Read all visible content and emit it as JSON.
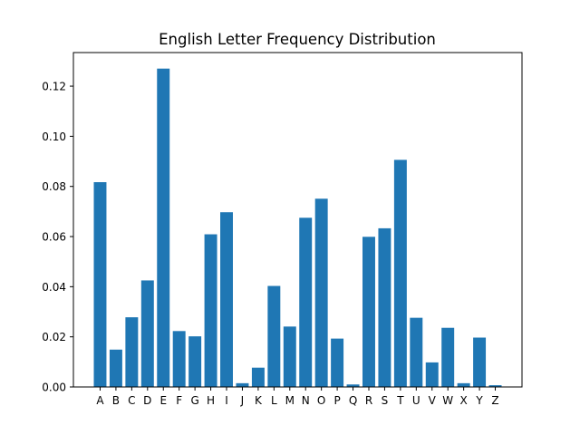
{
  "chart_data": {
    "type": "bar",
    "title": "English Letter Frequency Distribution",
    "xlabel": "",
    "ylabel": "",
    "categories": [
      "A",
      "B",
      "C",
      "D",
      "E",
      "F",
      "G",
      "H",
      "I",
      "J",
      "K",
      "L",
      "M",
      "N",
      "O",
      "P",
      "Q",
      "R",
      "S",
      "T",
      "U",
      "V",
      "W",
      "X",
      "Y",
      "Z"
    ],
    "values": [
      0.0817,
      0.0149,
      0.0278,
      0.0425,
      0.127,
      0.0223,
      0.0202,
      0.0609,
      0.0697,
      0.0015,
      0.0077,
      0.0403,
      0.0241,
      0.0675,
      0.0751,
      0.0193,
      0.001,
      0.0599,
      0.0633,
      0.0906,
      0.0276,
      0.0098,
      0.0236,
      0.0015,
      0.0197,
      0.0007
    ],
    "ylim": [
      0,
      0.1334
    ],
    "yticks": [
      0.0,
      0.02,
      0.04,
      0.06,
      0.08,
      0.1,
      0.12
    ],
    "ytick_labels": [
      "0.00",
      "0.02",
      "0.04",
      "0.06",
      "0.08",
      "0.10",
      "0.12"
    ],
    "bar_color": "#1f77b4",
    "grid": false,
    "legend": "none"
  }
}
